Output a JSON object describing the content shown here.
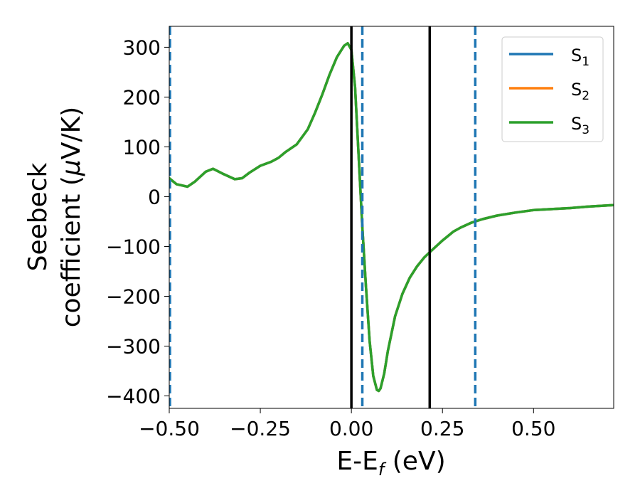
{
  "chart_data": {
    "type": "line",
    "xlabel": {
      "main": "E-E",
      "sub": "f",
      "suffix": " (eV)"
    },
    "ylabel": {
      "line1": "Seebeck",
      "line2": "coefficient  (",
      "mu": "μ",
      "line2_end": "V/K)"
    },
    "xlim": [
      -0.5,
      0.72
    ],
    "ylim": [
      -425,
      342
    ],
    "xticks": [
      -0.5,
      -0.25,
      0.0,
      0.25,
      0.5
    ],
    "xtick_labels": [
      "−0.50",
      "−0.25",
      "0.00",
      "0.25",
      "0.50"
    ],
    "yticks": [
      300,
      200,
      100,
      0,
      -100,
      -200,
      -300,
      -400
    ],
    "ytick_labels": [
      "300",
      "200",
      "100",
      "0",
      "−100",
      "−200",
      "−300",
      "−400"
    ],
    "grid": false,
    "legend_position": "top-right",
    "series": [
      {
        "name": "S",
        "sub": "1",
        "color": "#1f77b4"
      },
      {
        "name": "S",
        "sub": "2",
        "color": "#ff7f0e"
      },
      {
        "name": "S",
        "sub": "3",
        "color": "#2ca02c"
      }
    ],
    "x": [
      -0.5,
      -0.48,
      -0.45,
      -0.43,
      -0.4,
      -0.38,
      -0.35,
      -0.32,
      -0.3,
      -0.28,
      -0.25,
      -0.22,
      -0.2,
      -0.18,
      -0.15,
      -0.12,
      -0.1,
      -0.08,
      -0.06,
      -0.04,
      -0.02,
      -0.01,
      0.0,
      0.01,
      0.02,
      0.03,
      0.04,
      0.05,
      0.06,
      0.07,
      0.075,
      0.08,
      0.09,
      0.1,
      0.12,
      0.14,
      0.16,
      0.18,
      0.2,
      0.22,
      0.25,
      0.28,
      0.3,
      0.33,
      0.36,
      0.4,
      0.45,
      0.5,
      0.55,
      0.6,
      0.65,
      0.72
    ],
    "y": [
      37,
      25,
      20,
      30,
      50,
      56,
      45,
      35,
      37,
      48,
      62,
      70,
      78,
      90,
      105,
      135,
      168,
      205,
      245,
      280,
      303,
      308,
      295,
      220,
      80,
      -60,
      -180,
      -290,
      -360,
      -388,
      -390,
      -385,
      -355,
      -310,
      -240,
      -195,
      -163,
      -140,
      -122,
      -108,
      -88,
      -70,
      -62,
      -52,
      -45,
      -38,
      -32,
      -27,
      -25,
      -23,
      -20,
      -17
    ],
    "vlines_solid": [
      0.0,
      0.215
    ],
    "vlines_dashed": [
      -0.5,
      0.03,
      0.34
    ],
    "vline_solid_color": "#000000",
    "vline_dashed_color": "#1f77b4"
  }
}
